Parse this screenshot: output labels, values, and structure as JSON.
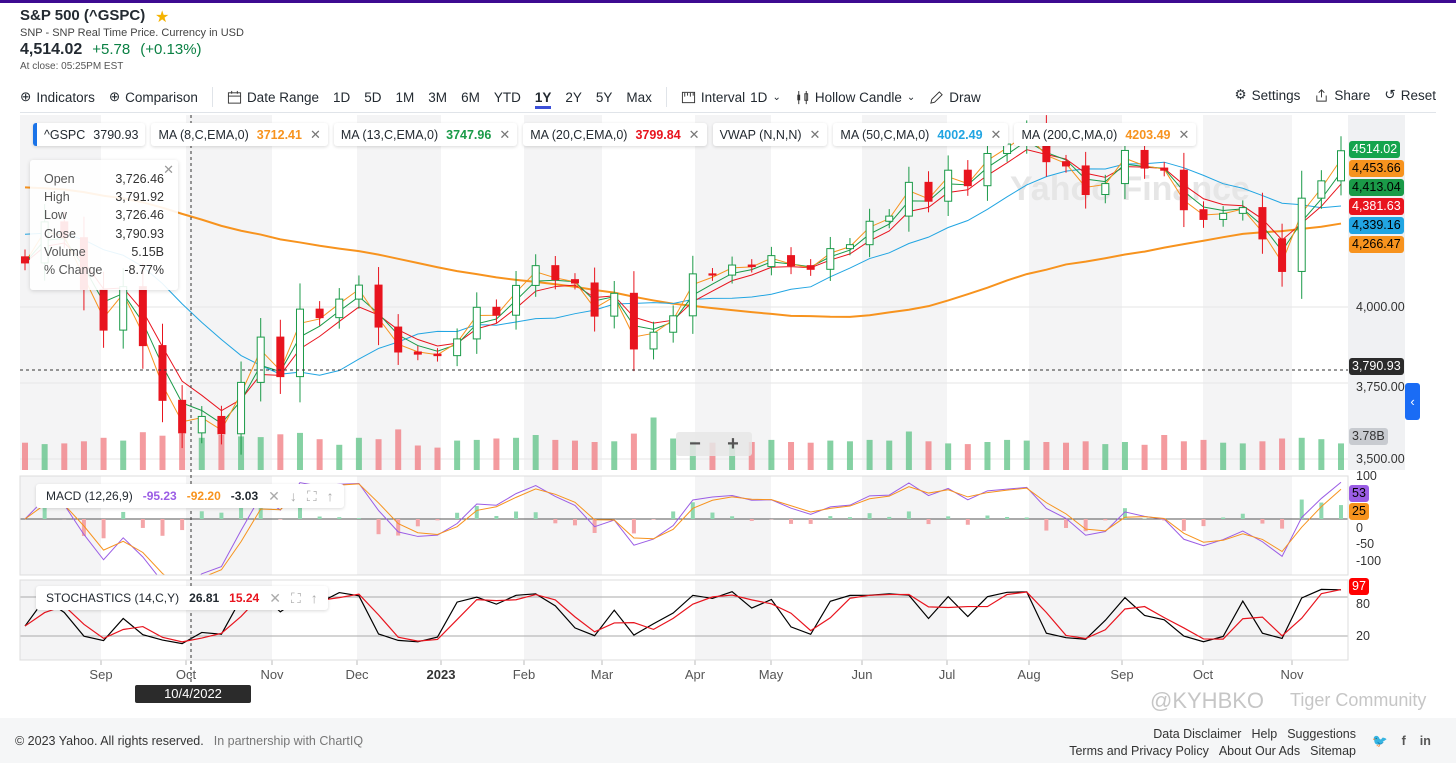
{
  "header": {
    "title": "S&P 500 (^GSPC)",
    "subtitle": "SNP - SNP Real Time Price. Currency in USD",
    "price": "4,514.02",
    "change": "+5.78",
    "change_pct": "(+0.13%)",
    "close_time": "At close: 05:25PM EST"
  },
  "toolbar": {
    "indicators": "Indicators",
    "comparison": "Comparison",
    "date_range": "Date Range",
    "ranges": [
      "1D",
      "5D",
      "1M",
      "3M",
      "6M",
      "YTD",
      "1Y",
      "2Y",
      "5Y",
      "Max"
    ],
    "active_range": "1Y",
    "interval": "Interval",
    "interval_value": "1D",
    "chart_type": "Hollow Candle",
    "draw": "Draw",
    "settings": "Settings",
    "share": "Share",
    "reset": "Reset"
  },
  "legend": [
    {
      "name": "^GSPC",
      "value": "3790.93",
      "color": "#232a31"
    },
    {
      "name": "MA (8,C,EMA,0)",
      "value": "3712.41",
      "color": "#f7931e"
    },
    {
      "name": "MA (13,C,EMA,0)",
      "value": "3747.96",
      "color": "#1a9a48"
    },
    {
      "name": "MA (20,C,EMA,0)",
      "value": "3799.84",
      "color": "#e8141e"
    },
    {
      "name": "VWAP (N,N,N)",
      "value": "",
      "color": "#232a31"
    },
    {
      "name": "MA (50,C,MA,0)",
      "value": "4002.49",
      "color": "#21a5e2"
    },
    {
      "name": "MA (200,C,MA,0)",
      "value": "4203.49",
      "color": "#f7931e"
    }
  ],
  "tooltip": {
    "rows": [
      [
        "Open",
        "3,726.46"
      ],
      [
        "High",
        "3,791.92"
      ],
      [
        "Low",
        "3,726.46"
      ],
      [
        "Close",
        "3,790.93"
      ],
      [
        "Volume",
        "5.15B"
      ],
      [
        "% Change",
        "-8.77%"
      ]
    ]
  },
  "crosshair": {
    "date": "10/4/2022",
    "price": "3,790.93"
  },
  "axis": {
    "price_ticks": [
      "4,000.00",
      "3,750.00",
      "3,500.00"
    ],
    "price_labels": [
      {
        "text": "4514.02",
        "bg": "#14a44d",
        "fg": "#fff"
      },
      {
        "text": "4,453.66",
        "bg": "#f7931e",
        "fg": "#000"
      },
      {
        "text": "4,413.04",
        "bg": "#1a9a48",
        "fg": "#000"
      },
      {
        "text": "4,381.63",
        "bg": "#e8141e",
        "fg": "#fff"
      },
      {
        "text": "4,339.16",
        "bg": "#21a5e2",
        "fg": "#000"
      },
      {
        "text": "4,266.47",
        "bg": "#f7931e",
        "fg": "#000"
      }
    ],
    "volume_label": "3.78B",
    "macd_ticks": [
      "100",
      "0",
      "-50",
      "-100"
    ],
    "macd_labels": [
      {
        "text": "53",
        "bg": "#9b5de5"
      },
      {
        "text": "25",
        "bg": "#f7931e"
      }
    ],
    "stoch_ticks": [
      "80",
      "20"
    ],
    "stoch_label": "97",
    "months": [
      "Sep",
      "Oct",
      "Nov",
      "Dec",
      "2023",
      "Feb",
      "Mar",
      "Apr",
      "May",
      "Jun",
      "Jul",
      "Aug",
      "Sep",
      "Oct",
      "Nov"
    ]
  },
  "macd": {
    "label": "MACD (12,26,9)",
    "macd": "-95.23",
    "signal": "-92.20",
    "hist": "-3.03"
  },
  "stoch": {
    "label": "STOCHASTICS (14,C,Y)",
    "k": "26.81",
    "d": "15.24"
  },
  "footer": {
    "copyright": "© 2023 Yahoo. All rights reserved.",
    "partner": "In partnership with ChartIQ",
    "links1": [
      "Data Disclaimer",
      "Help",
      "Suggestions"
    ],
    "links2": [
      "Terms and Privacy Policy",
      "About Our Ads",
      "Sitemap"
    ]
  },
  "watermarks": {
    "chart": "Yahoo Finance",
    "community": "Tiger Community",
    "handle": "@KYHBKO"
  },
  "chart_data": {
    "type": "candlestick",
    "interval": "weekly (approximated)",
    "start": "2022-08-05",
    "end": "2023-11-17",
    "closes": [
      4145,
      4280,
      4228,
      4058,
      3924,
      4067,
      3873,
      3693,
      3586,
      3640,
      3583,
      3752,
      3901,
      3771,
      3993,
      3965,
      4026,
      4072,
      3934,
      3852,
      3845,
      3840,
      3895,
      3999,
      3973,
      4071,
      4136,
      4090,
      4079,
      3970,
      4045,
      3862,
      3917,
      3971,
      4109,
      4105,
      4138,
      4133,
      4169,
      4136,
      4124,
      4192,
      4205,
      4282,
      4299,
      4410,
      4348,
      4450,
      4399,
      4505,
      4536,
      4582,
      4478,
      4464,
      4370,
      4406,
      4515,
      4457,
      4450,
      4320,
      4288,
      4308,
      4327,
      4224,
      4117,
      4358,
      4415,
      4514
    ],
    "volumes_b": [
      3.9,
      3.7,
      3.8,
      4.1,
      4.6,
      4.2,
      5.4,
      4.9,
      5.2,
      4.6,
      5.0,
      4.8,
      4.7,
      5.1,
      5.3,
      4.4,
      3.6,
      4.6,
      4.4,
      5.8,
      3.5,
      3.2,
      4.2,
      4.3,
      4.5,
      4.6,
      5.0,
      4.3,
      4.2,
      4.0,
      4.1,
      5.2,
      7.5,
      4.5,
      4.1,
      3.9,
      3.8,
      4.0,
      4.3,
      4.0,
      3.9,
      4.2,
      4.1,
      4.3,
      4.2,
      5.5,
      4.1,
      3.8,
      3.7,
      4.0,
      4.3,
      4.2,
      4.0,
      3.9,
      4.1,
      3.7,
      4.0,
      3.6,
      5.0,
      4.1,
      4.3,
      3.9,
      3.8,
      4.1,
      4.5,
      4.6,
      4.4,
      3.8
    ],
    "ylim": [
      3464,
      4631
    ]
  }
}
